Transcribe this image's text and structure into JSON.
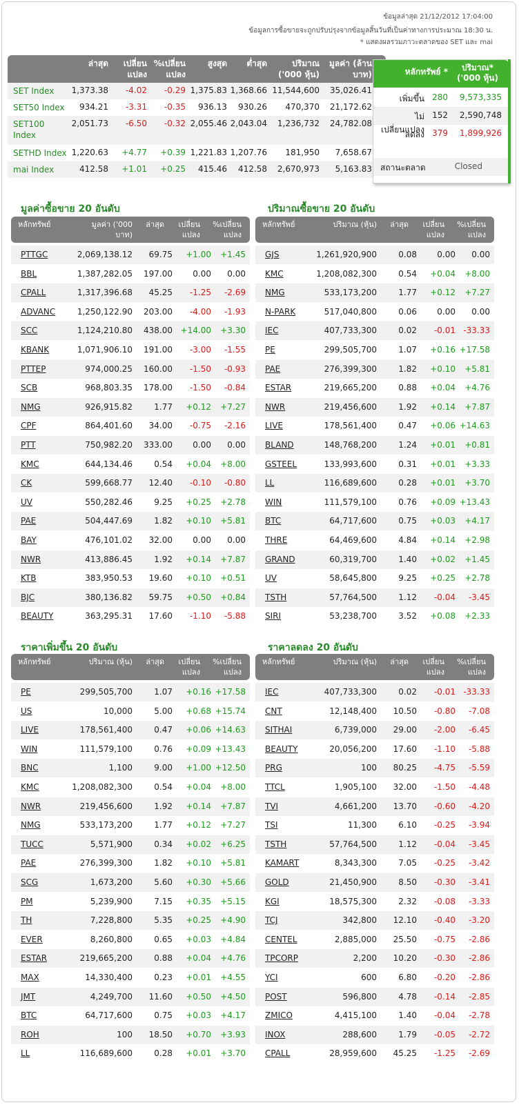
{
  "meta": {
    "updated": "ข้อมูลล่าสุด 21/12/2012 17:04:00",
    "note1": "ข้อมูลการซื้อขายจะถูกปรับปรุงจากข้อมูลสิ้นวันที่เป็นค่าทางการประมาณ 18:30 น.",
    "note2": "* แสดงผลรวมภาวะตลาดของ SET และ mai"
  },
  "index_table": {
    "headers": [
      "ล่าสุด",
      "เปลี่ยน แปลง",
      "%เปลี่ยน แปลง",
      "สูงสุด",
      "ต่ำสุด",
      "ปริมาณ ('000 หุ้น)",
      "มูลค่า (ล้านบาท)"
    ],
    "rows": [
      {
        "name": "SET Index",
        "last": "1,373.38",
        "chg": "-4.02",
        "pct": "-0.29",
        "high": "1,375.83",
        "low": "1,368.66",
        "vol": "11,544,600",
        "val": "35,026.41"
      },
      {
        "name": "SET50 Index",
        "last": "934.21",
        "chg": "-3.31",
        "pct": "-0.35",
        "high": "936.13",
        "low": "930.26",
        "vol": "470,370",
        "val": "21,172.62"
      },
      {
        "name": "SET100 Index",
        "last": "2,051.73",
        "chg": "-6.50",
        "pct": "-0.32",
        "high": "2,055.46",
        "low": "2,043.04",
        "vol": "1,236,732",
        "val": "24,782.08"
      },
      {
        "name": "SETHD Index",
        "last": "1,220.63",
        "chg": "+4.77",
        "pct": "+0.39",
        "high": "1,221.83",
        "low": "1,207.76",
        "vol": "181,950",
        "val": "7,658.67"
      },
      {
        "name": "mai Index",
        "last": "412.58",
        "chg": "+1.01",
        "pct": "+0.25",
        "high": "415.46",
        "low": "412.58",
        "vol": "2,670,973",
        "val": "5,163.83"
      }
    ]
  },
  "breadth": {
    "head_symbol": "หลักทรัพย์ *",
    "head_volume": "ปริมาณ* ('000 หุ้น)",
    "rows": [
      {
        "label": "เพิ่มขึ้น",
        "count": "280",
        "vol": "9,573,335",
        "color": "#1f9a1f"
      },
      {
        "label": "ไม่เปลี่ยนแปลง",
        "count": "152",
        "vol": "2,590,748",
        "color": "#222222"
      },
      {
        "label": "ลดลง",
        "count": "379",
        "vol": "1,899,926",
        "color": "#d81b1b"
      }
    ],
    "status_label": "สถานะตลาด",
    "status_value": "Closed"
  },
  "top_value": {
    "title": "มูลค่าซื้อขาย 20 อันดับ",
    "headers": [
      "หลักทรัพย์",
      "มูลค่า ('000 บาท)",
      "ล่าสุด",
      "เปลี่ยน แปลง",
      "%เปลี่ยน แปลง"
    ],
    "rows": [
      [
        "PTTGC",
        "2,069,138.12",
        "69.75",
        "+1.00",
        "+1.45"
      ],
      [
        "BBL",
        "1,387,282.05",
        "197.00",
        "0.00",
        "0.00"
      ],
      [
        "CPALL",
        "1,317,396.68",
        "45.25",
        "-1.25",
        "-2.69"
      ],
      [
        "ADVANC",
        "1,250,122.90",
        "203.00",
        "-4.00",
        "-1.93"
      ],
      [
        "SCC",
        "1,124,210.80",
        "438.00",
        "+14.00",
        "+3.30"
      ],
      [
        "KBANK",
        "1,071,906.10",
        "191.00",
        "-3.00",
        "-1.55"
      ],
      [
        "PTTEP",
        "974,000.25",
        "160.00",
        "-1.50",
        "-0.93"
      ],
      [
        "SCB",
        "968,803.35",
        "178.00",
        "-1.50",
        "-0.84"
      ],
      [
        "NMG",
        "926,915.82",
        "1.77",
        "+0.12",
        "+7.27"
      ],
      [
        "CPF",
        "864,401.60",
        "34.00",
        "-0.75",
        "-2.16"
      ],
      [
        "PTT",
        "750,982.20",
        "333.00",
        "0.00",
        "0.00"
      ],
      [
        "KMC",
        "644,134.46",
        "0.54",
        "+0.04",
        "+8.00"
      ],
      [
        "CK",
        "599,668.77",
        "12.40",
        "-0.10",
        "-0.80"
      ],
      [
        "UV",
        "550,282.46",
        "9.25",
        "+0.25",
        "+2.78"
      ],
      [
        "PAE",
        "504,447.69",
        "1.82",
        "+0.10",
        "+5.81"
      ],
      [
        "BAY",
        "476,101.02",
        "32.00",
        "0.00",
        "0.00"
      ],
      [
        "NWR",
        "413,886.45",
        "1.92",
        "+0.14",
        "+7.87"
      ],
      [
        "KTB",
        "383,950.53",
        "19.60",
        "+0.10",
        "+0.51"
      ],
      [
        "BJC",
        "380,136.82",
        "59.75",
        "+0.50",
        "+0.84"
      ],
      [
        "BEAUTY",
        "363,295.31",
        "17.60",
        "-1.10",
        "-5.88"
      ]
    ]
  },
  "top_volume": {
    "title": "ปริมาณซื้อขาย 20 อันดับ",
    "headers": [
      "หลักทรัพย์",
      "ปริมาณ (หุ้น)",
      "ล่าสุด",
      "เปลี่ยน แปลง",
      "%เปลี่ยน แปลง"
    ],
    "rows": [
      [
        "GJS",
        "1,261,920,900",
        "0.08",
        "0.00",
        "0.00"
      ],
      [
        "KMC",
        "1,208,082,300",
        "0.54",
        "+0.04",
        "+8.00"
      ],
      [
        "NMG",
        "533,173,200",
        "1.77",
        "+0.12",
        "+7.27"
      ],
      [
        "N-PARK",
        "517,040,800",
        "0.06",
        "0.00",
        "0.00"
      ],
      [
        "IEC",
        "407,733,300",
        "0.02",
        "-0.01",
        "-33.33"
      ],
      [
        "PE",
        "299,505,700",
        "1.07",
        "+0.16",
        "+17.58"
      ],
      [
        "PAE",
        "276,399,300",
        "1.82",
        "+0.10",
        "+5.81"
      ],
      [
        "ESTAR",
        "219,665,200",
        "0.88",
        "+0.04",
        "+4.76"
      ],
      [
        "NWR",
        "219,456,600",
        "1.92",
        "+0.14",
        "+7.87"
      ],
      [
        "LIVE",
        "178,561,400",
        "0.47",
        "+0.06",
        "+14.63"
      ],
      [
        "BLAND",
        "148,768,200",
        "1.24",
        "+0.01",
        "+0.81"
      ],
      [
        "GSTEEL",
        "133,993,600",
        "0.31",
        "+0.01",
        "+3.33"
      ],
      [
        "LL",
        "116,689,600",
        "0.28",
        "+0.01",
        "+3.70"
      ],
      [
        "WIN",
        "111,579,100",
        "0.76",
        "+0.09",
        "+13.43"
      ],
      [
        "BTC",
        "64,717,600",
        "0.75",
        "+0.03",
        "+4.17"
      ],
      [
        "THRE",
        "64,469,600",
        "4.84",
        "+0.14",
        "+2.98"
      ],
      [
        "GRAND",
        "60,319,700",
        "1.40",
        "+0.02",
        "+1.45"
      ],
      [
        "UV",
        "58,645,800",
        "9.25",
        "+0.25",
        "+2.78"
      ],
      [
        "TSTH",
        "57,764,500",
        "1.12",
        "-0.04",
        "-3.45"
      ],
      [
        "SIRI",
        "53,238,700",
        "3.52",
        "+0.08",
        "+2.33"
      ]
    ]
  },
  "top_gainers": {
    "title": "ราคาเพิ่มขึ้น 20 อันดับ",
    "headers": [
      "หลักทรัพย์",
      "ปริมาณ (หุ้น)",
      "ล่าสุด",
      "เปลี่ยน แปลง",
      "%เปลี่ยน แปลง"
    ],
    "rows": [
      [
        "PE",
        "299,505,700",
        "1.07",
        "+0.16",
        "+17.58"
      ],
      [
        "US",
        "10,000",
        "5.00",
        "+0.68",
        "+15.74"
      ],
      [
        "LIVE",
        "178,561,400",
        "0.47",
        "+0.06",
        "+14.63"
      ],
      [
        "WIN",
        "111,579,100",
        "0.76",
        "+0.09",
        "+13.43"
      ],
      [
        "BNC",
        "1,100",
        "9.00",
        "+1.00",
        "+12.50"
      ],
      [
        "KMC",
        "1,208,082,300",
        "0.54",
        "+0.04",
        "+8.00"
      ],
      [
        "NWR",
        "219,456,600",
        "1.92",
        "+0.14",
        "+7.87"
      ],
      [
        "NMG",
        "533,173,200",
        "1.77",
        "+0.12",
        "+7.27"
      ],
      [
        "TUCC",
        "5,571,900",
        "0.34",
        "+0.02",
        "+6.25"
      ],
      [
        "PAE",
        "276,399,300",
        "1.82",
        "+0.10",
        "+5.81"
      ],
      [
        "SCG",
        "1,673,200",
        "5.60",
        "+0.30",
        "+5.66"
      ],
      [
        "PM",
        "5,239,900",
        "7.15",
        "+0.35",
        "+5.15"
      ],
      [
        "TH",
        "7,228,800",
        "5.35",
        "+0.25",
        "+4.90"
      ],
      [
        "EVER",
        "8,260,800",
        "0.65",
        "+0.03",
        "+4.84"
      ],
      [
        "ESTAR",
        "219,665,200",
        "0.88",
        "+0.04",
        "+4.76"
      ],
      [
        "MAX",
        "14,330,400",
        "0.23",
        "+0.01",
        "+4.55"
      ],
      [
        "JMT",
        "4,249,700",
        "11.60",
        "+0.50",
        "+4.50"
      ],
      [
        "BTC",
        "64,717,600",
        "0.75",
        "+0.03",
        "+4.17"
      ],
      [
        "ROH",
        "100",
        "18.50",
        "+0.70",
        "+3.93"
      ],
      [
        "LL",
        "116,689,600",
        "0.28",
        "+0.01",
        "+3.70"
      ]
    ]
  },
  "top_losers": {
    "title": "ราคาลดลง 20 อันดับ",
    "headers": [
      "หลักทรัพย์",
      "ปริมาณ (หุ้น)",
      "ล่าสุด",
      "เปลี่ยน แปลง",
      "%เปลี่ยน แปลง"
    ],
    "rows": [
      [
        "IEC",
        "407,733,300",
        "0.02",
        "-0.01",
        "-33.33"
      ],
      [
        "CNT",
        "12,148,400",
        "10.50",
        "-0.80",
        "-7.08"
      ],
      [
        "SITHAI",
        "6,739,000",
        "29.00",
        "-2.00",
        "-6.45"
      ],
      [
        "BEAUTY",
        "20,056,200",
        "17.60",
        "-1.10",
        "-5.88"
      ],
      [
        "PRG",
        "100",
        "80.25",
        "-4.75",
        "-5.59"
      ],
      [
        "TTCL",
        "1,905,100",
        "32.00",
        "-1.50",
        "-4.48"
      ],
      [
        "TVI",
        "4,661,200",
        "13.70",
        "-0.60",
        "-4.20"
      ],
      [
        "TSI",
        "11,300",
        "6.10",
        "-0.25",
        "-3.94"
      ],
      [
        "TSTH",
        "57,764,500",
        "1.12",
        "-0.04",
        "-3.45"
      ],
      [
        "KAMART",
        "8,343,300",
        "7.05",
        "-0.25",
        "-3.42"
      ],
      [
        "GOLD",
        "21,450,900",
        "8.50",
        "-0.30",
        "-3.41"
      ],
      [
        "KGI",
        "18,575,300",
        "2.32",
        "-0.08",
        "-3.33"
      ],
      [
        "TCJ",
        "342,800",
        "12.10",
        "-0.40",
        "-3.20"
      ],
      [
        "CENTEL",
        "2,885,000",
        "25.50",
        "-0.75",
        "-2.86"
      ],
      [
        "TPCORP",
        "2,200",
        "10.20",
        "-0.30",
        "-2.86"
      ],
      [
        "YCI",
        "600",
        "6.80",
        "-0.20",
        "-2.86"
      ],
      [
        "POST",
        "596,800",
        "4.78",
        "-0.14",
        "-2.85"
      ],
      [
        "ZMICO",
        "4,415,100",
        "1.40",
        "-0.04",
        "-2.78"
      ],
      [
        "INOX",
        "288,600",
        "1.79",
        "-0.05",
        "-2.72"
      ],
      [
        "CPALL",
        "28,959,600",
        "45.25",
        "-1.25",
        "-2.69"
      ]
    ]
  },
  "colors": {
    "positive": "#1f9a1f",
    "negative": "#d81b1b",
    "header_gray": "#7f7f7f",
    "accent_green": "#43b12e"
  }
}
